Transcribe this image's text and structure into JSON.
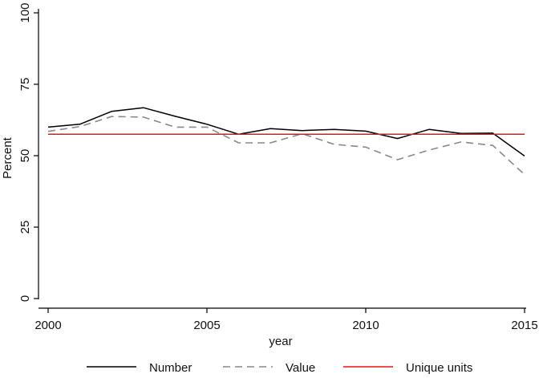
{
  "chart_data": {
    "type": "line",
    "xlabel": "year",
    "ylabel": "Percent",
    "xlim": [
      2000,
      2015
    ],
    "ylim": [
      0,
      100
    ],
    "x_ticks": [
      2000,
      2005,
      2010,
      2015
    ],
    "y_ticks": [
      0,
      25,
      50,
      75,
      100
    ],
    "x": [
      2000,
      2001,
      2002,
      2003,
      2004,
      2005,
      2006,
      2007,
      2008,
      2009,
      2010,
      2011,
      2012,
      2013,
      2014,
      2015
    ],
    "series": [
      {
        "name": "Number",
        "color": "#000000",
        "style": "solid",
        "values": [
          60.0,
          61.0,
          65.5,
          66.8,
          63.8,
          61.0,
          57.5,
          59.5,
          58.8,
          59.2,
          58.6,
          56.0,
          59.2,
          57.8,
          57.9,
          49.9
        ]
      },
      {
        "name": "Value",
        "color": "#888888",
        "style": "dashed",
        "values": [
          58.5,
          60.2,
          63.7,
          63.5,
          60.0,
          60.0,
          54.5,
          54.5,
          57.7,
          54.0,
          53.0,
          48.6,
          52.0,
          54.8,
          53.6,
          43.4
        ]
      },
      {
        "name": "Unique units",
        "color": "#e8141c",
        "style": "solid",
        "values": [
          57.5,
          57.5,
          57.5,
          57.5,
          57.5,
          57.5,
          57.5,
          57.5,
          57.5,
          57.5,
          57.5,
          57.5,
          57.5,
          57.5,
          57.5,
          57.5
        ]
      }
    ],
    "legend_position": "bottom",
    "grid": false
  }
}
